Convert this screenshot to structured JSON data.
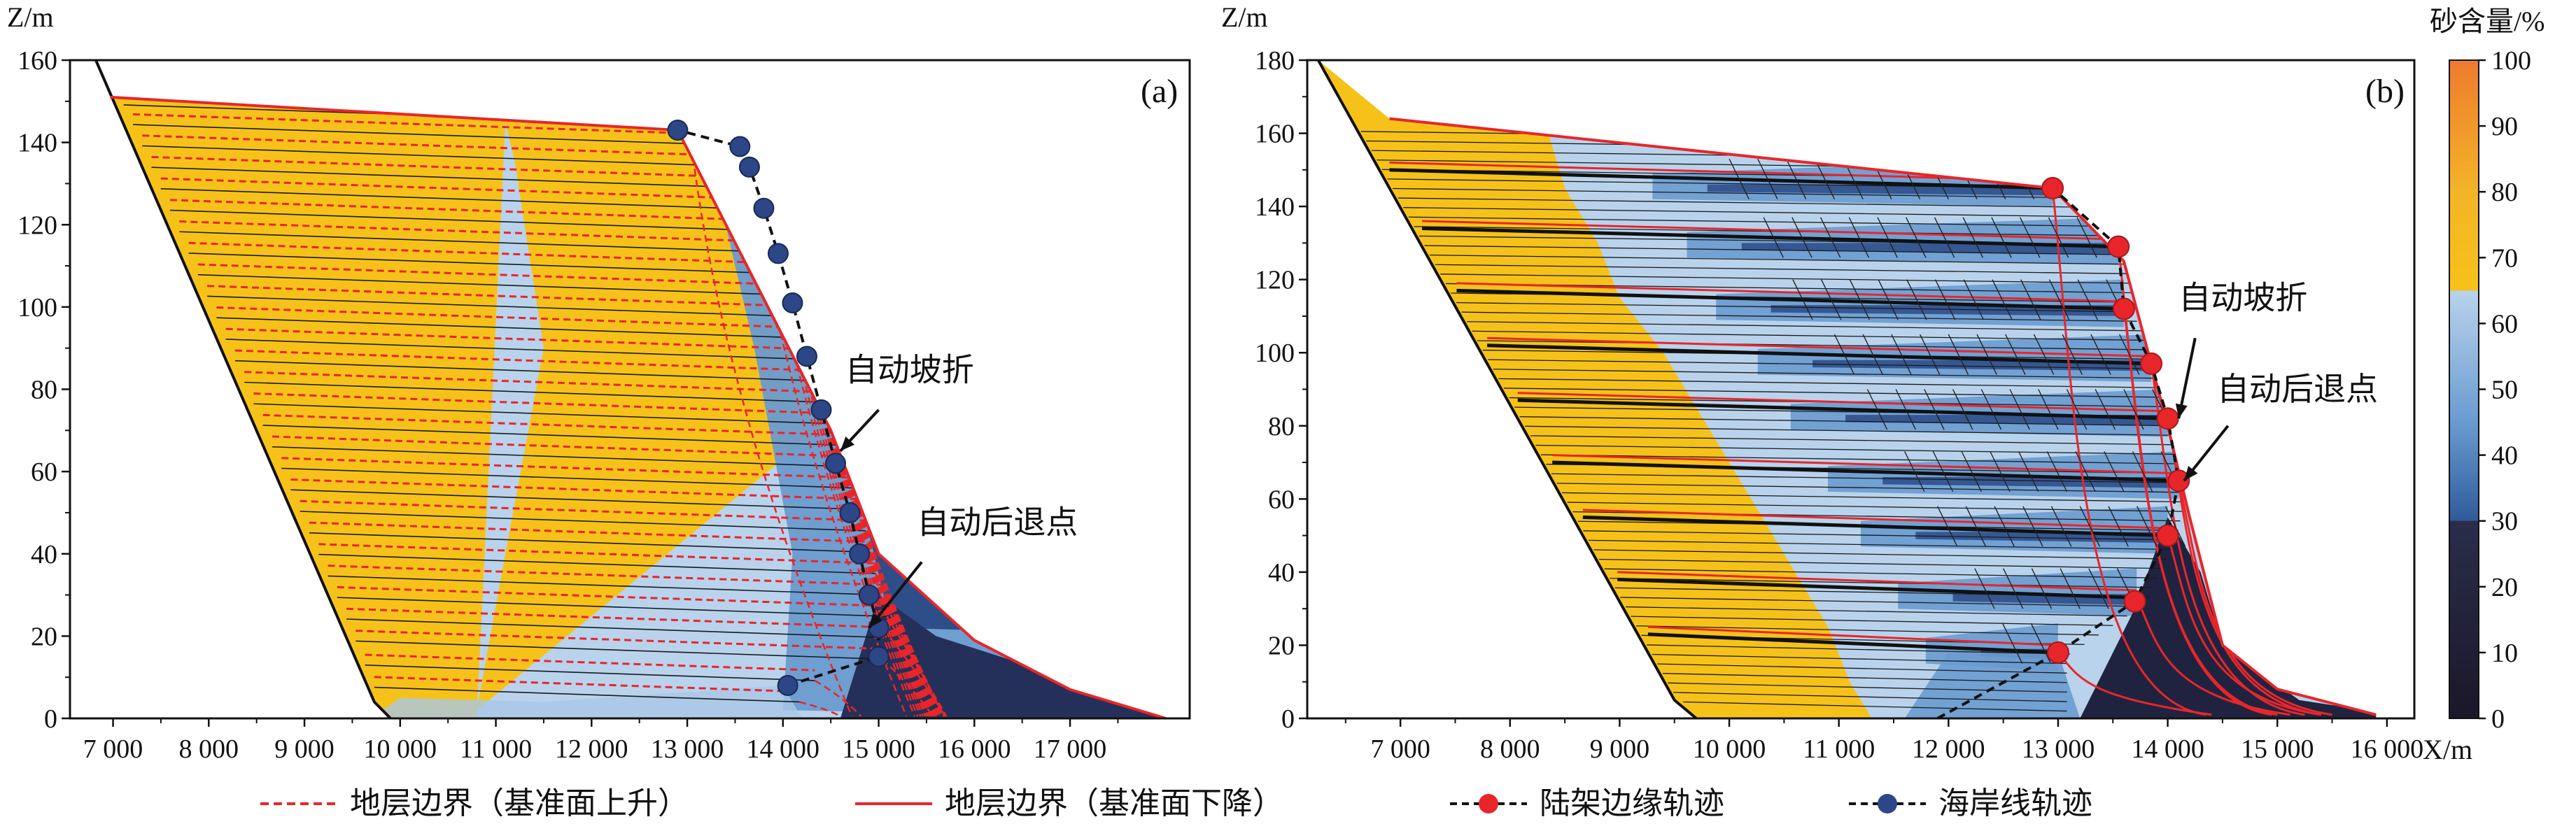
{
  "chart_data": [
    {
      "type": "area",
      "panel_label": "(a)",
      "ylabel": "Z/m",
      "xlabel": "",
      "xlim": [
        6550,
        18250
      ],
      "ylim": [
        0,
        160
      ],
      "xticks": [
        7000,
        8000,
        9000,
        10000,
        11000,
        12000,
        13000,
        14000,
        15000,
        16000,
        17000
      ],
      "xtick_labels": [
        "7 000",
        "8 000",
        "9 000",
        "10 000",
        "11 000",
        "12 000",
        "13 000",
        "14 000",
        "15 000",
        "16 000",
        "17 000"
      ],
      "yticks": [
        0,
        20,
        40,
        60,
        80,
        100,
        120,
        140,
        160
      ],
      "ytick_labels": [
        "0",
        "20",
        "40",
        "60",
        "80",
        "100",
        "120",
        "140",
        "160"
      ],
      "basement_line": [
        [
          6820,
          160
        ],
        [
          9730,
          4
        ],
        [
          9900,
          0
        ]
      ],
      "top_surface": [
        [
          6970,
          151
        ],
        [
          12900,
          143
        ],
        [
          14500,
          70
        ],
        [
          15000,
          40
        ],
        [
          16000,
          19
        ],
        [
          17000,
          7
        ],
        [
          18000,
          0
        ]
      ],
      "sand_zones": {
        "yellow_front": [
          [
            10800,
            2
          ],
          [
            11100,
            40
          ],
          [
            11500,
            90
          ],
          [
            11200,
            135
          ],
          [
            11100,
            145
          ]
        ],
        "light_blue_front": [
          [
            14000,
            2
          ],
          [
            14100,
            40
          ],
          [
            13700,
            90
          ],
          [
            13400,
            120
          ],
          [
            12900,
            145
          ]
        ]
      },
      "shoreline_trajectory": [
        [
          14050,
          8
        ],
        [
          15000,
          15
        ],
        [
          15000,
          22
        ],
        [
          14900,
          30
        ],
        [
          14800,
          40
        ],
        [
          14700,
          50
        ],
        [
          14550,
          62
        ],
        [
          14400,
          75
        ],
        [
          14250,
          88
        ],
        [
          14100,
          101
        ],
        [
          13950,
          113
        ],
        [
          13800,
          124
        ],
        [
          13650,
          134
        ],
        [
          13550,
          139
        ],
        [
          12900,
          143
        ]
      ],
      "annotations": [
        {
          "text": "自动坡折",
          "target": [
            14600,
            65
          ]
        },
        {
          "text": "自动后退点",
          "target": [
            14900,
            22
          ]
        }
      ]
    },
    {
      "type": "area",
      "panel_label": "(b)",
      "ylabel": "Z/m",
      "xlabel": "X/m",
      "xlim": [
        6150,
        16250
      ],
      "ylim": [
        0,
        180
      ],
      "xticks": [
        7000,
        8000,
        9000,
        10000,
        11000,
        12000,
        13000,
        14000,
        15000,
        16000
      ],
      "xtick_labels": [
        "7 000",
        "8 000",
        "9 000",
        "10 000",
        "11 000",
        "12 000",
        "13 000",
        "14 000",
        "15 000",
        "16 000"
      ],
      "yticks": [
        0,
        20,
        40,
        60,
        80,
        100,
        120,
        140,
        160,
        180
      ],
      "ytick_labels": [
        "0",
        "20",
        "40",
        "60",
        "80",
        "100",
        "120",
        "140",
        "160",
        "180"
      ],
      "basement_line": [
        [
          6250,
          180
        ],
        [
          9500,
          5
        ],
        [
          9700,
          0
        ]
      ],
      "top_surface": [
        [
          6900,
          164
        ],
        [
          12950,
          145
        ],
        [
          13600,
          125
        ],
        [
          14000,
          80
        ],
        [
          14200,
          55
        ],
        [
          14500,
          20
        ],
        [
          15000,
          8
        ],
        [
          15900,
          1
        ]
      ],
      "shelf_edge_trajectory": [
        [
          13000,
          18
        ],
        [
          13700,
          32
        ],
        [
          14000,
          50
        ],
        [
          14100,
          65
        ],
        [
          14000,
          82
        ],
        [
          13850,
          97
        ],
        [
          13600,
          112
        ],
        [
          13550,
          129
        ],
        [
          12950,
          145
        ]
      ],
      "annotations": [
        {
          "text": "自动坡折",
          "target": [
            14100,
            82
          ]
        },
        {
          "text": "自动后退点",
          "target": [
            14150,
            65
          ]
        }
      ]
    }
  ],
  "colorbar": {
    "title": "砂含量/%",
    "ticks": [
      "0",
      "10",
      "20",
      "30",
      "40",
      "50",
      "60",
      "70",
      "80",
      "90",
      "100"
    ],
    "stops": [
      {
        "value": 0,
        "color": "#1b1729"
      },
      {
        "value": 30,
        "color": "#2a2d4a"
      },
      {
        "value": 30.01,
        "color": "#2f5b9a"
      },
      {
        "value": 45,
        "color": "#6a9bd0"
      },
      {
        "value": 65,
        "color": "#b9d3ec"
      },
      {
        "value": 65.01,
        "color": "#f6c21a"
      },
      {
        "value": 80,
        "color": "#f3b427"
      },
      {
        "value": 100,
        "color": "#ee7b2e"
      }
    ]
  },
  "legend": [
    {
      "label": "地层边界（基准面上升）",
      "style": "dashed-red"
    },
    {
      "label": "地层边界（基准面下降）",
      "style": "solid-red"
    },
    {
      "label": "陆架边缘轨迹",
      "style": "dashed-black-red-dot"
    },
    {
      "label": "海岸线轨迹",
      "style": "dashed-black-blue-dot"
    }
  ],
  "colors": {
    "sand_yellow": "#f6c21a",
    "light_blue": "#b9d3ec",
    "mid_blue": "#6a9bd0",
    "dark_blue": "#2a4a86",
    "near_black": "#1b1729",
    "boundary_red": "#e8262a",
    "shelf_dot": "#e8262a",
    "shore_dot": "#2c4687"
  }
}
